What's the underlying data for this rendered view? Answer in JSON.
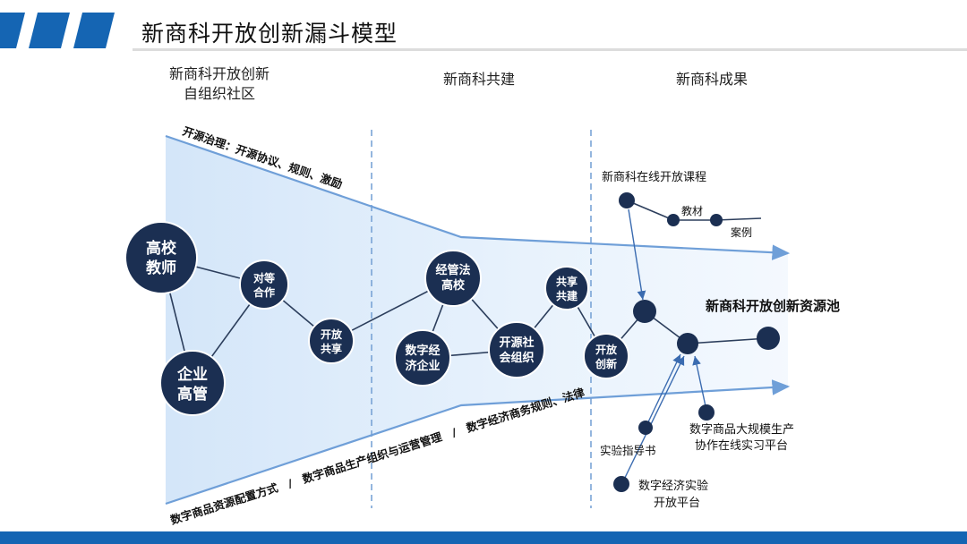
{
  "title": "新商科开放创新漏斗模型",
  "columns": {
    "community_line1": "新商科开放创新",
    "community_line2": "自组织社区",
    "co_build": "新商科共建",
    "results": "新商科成果"
  },
  "funnel": {
    "top_label": "开源治理：开源协议、规则、激励",
    "bottom_label_1": "数字商品资源配置方式",
    "bottom_label_sep_1": "/",
    "bottom_label_2": "数字商品生产组织与运营管理",
    "bottom_label_sep_2": "/",
    "bottom_label_3": "数字经济商务规则、法律"
  },
  "nodes": {
    "teacher": [
      "高校",
      "教师"
    ],
    "manager": [
      "企业",
      "高管"
    ],
    "peer": [
      "对等",
      "合作"
    ],
    "open_share": [
      "开放",
      "共享"
    ],
    "econ_school": [
      "经管法",
      "高校"
    ],
    "digital_firm": [
      "数字经",
      "济企业"
    ],
    "open_source_org": [
      "开源社",
      "会组织"
    ],
    "share_build": [
      "共享",
      "共建"
    ],
    "open_innov": [
      "开放",
      "创新"
    ]
  },
  "results": {
    "online_course": "新商科在线开放课程",
    "textbook": "教材",
    "case": "案例",
    "pool": "新商科开放创新资源池",
    "lab_guide": "实验指导书",
    "lab_platform_1": "数字经济实验",
    "lab_platform_2": "开放平台",
    "practice_platform_1": "数字商品大规模生产",
    "practice_platform_2": "协作在线实习平台"
  },
  "colors": {
    "accent": "#1565b3",
    "node": "#1b2f52",
    "funnel_fill": "#dcebfa",
    "arrow": "#6f9fd8",
    "edge": "#2c3e5c"
  }
}
